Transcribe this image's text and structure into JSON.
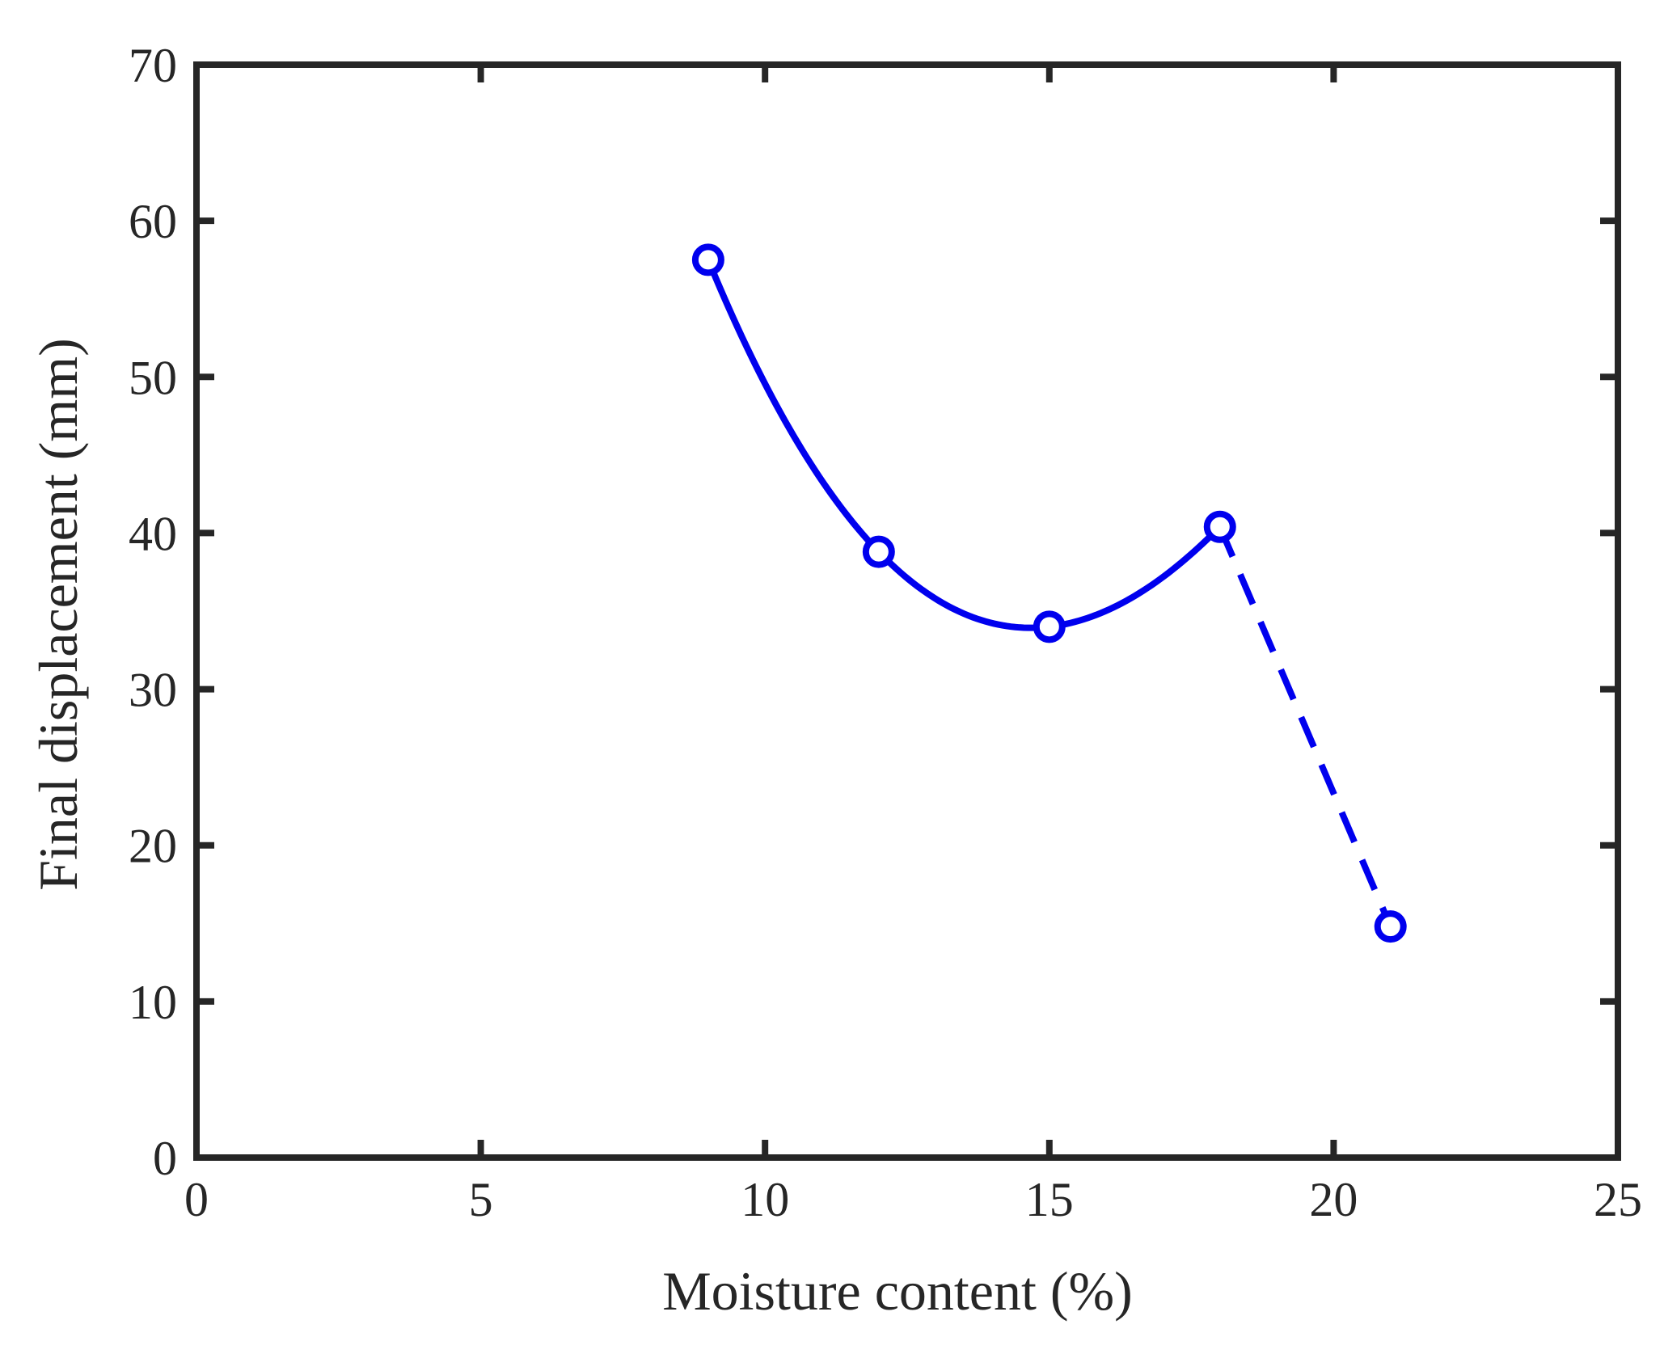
{
  "chart_data": {
    "type": "line",
    "xlabel": "Moisture content (%)",
    "ylabel": "Final displacement (mm)",
    "xlim": [
      0,
      25
    ],
    "ylim": [
      0,
      70
    ],
    "xticks": [
      0,
      5,
      10,
      15,
      20,
      25
    ],
    "yticks": [
      0,
      10,
      20,
      30,
      40,
      50,
      60,
      70
    ],
    "grid": false,
    "box": true,
    "series": [
      {
        "color": "#0000ee",
        "marker": "circle",
        "x": [
          9,
          12,
          15,
          18,
          21
        ],
        "y": [
          57.5,
          38.8,
          34.0,
          40.4,
          14.8
        ],
        "solid_fit_segment": [
          9,
          18
        ],
        "dashed_segment": [
          18,
          21
        ]
      }
    ]
  }
}
